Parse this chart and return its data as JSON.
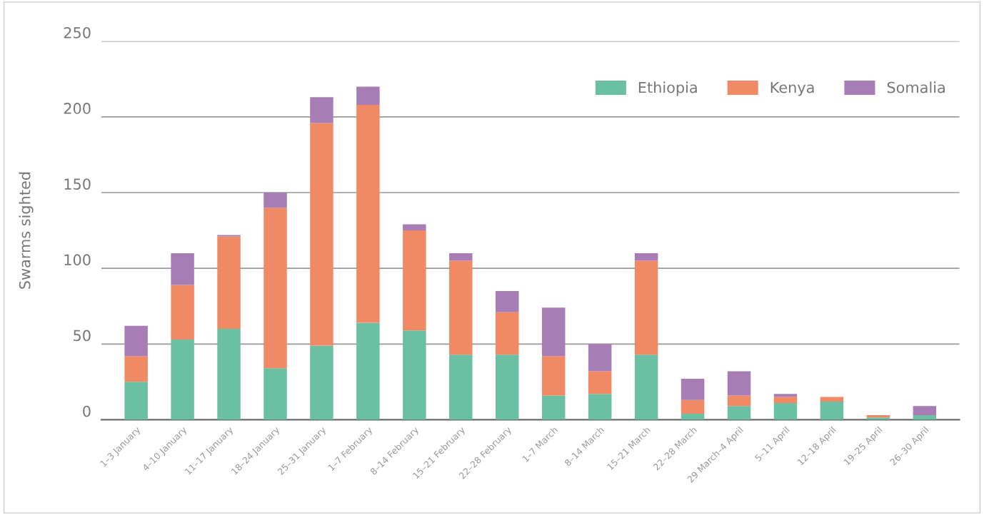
{
  "chart_data": {
    "type": "bar",
    "stacked": true,
    "ylabel": "Swarms sighted",
    "categories": [
      "1–3 January",
      "4–10 January",
      "11–17 January",
      "18–24 January",
      "25–31 January",
      "1–7 February",
      "8–14 February",
      "15–21 February",
      "22–28 February",
      "1–7 March",
      "8–14 March",
      "15–21 March",
      "22–28 March",
      "29 March–4 April",
      "5–11 April",
      "12–18 April",
      "19–25 April",
      "26–30 April"
    ],
    "series": [
      {
        "name": "Ethiopia",
        "color": "#6bbfa3",
        "values": [
          25,
          53,
          60,
          34,
          49,
          64,
          59,
          43,
          43,
          16,
          17,
          43,
          4,
          9,
          11,
          12,
          1.5,
          3
        ]
      },
      {
        "name": "Kenya",
        "color": "#f08a65",
        "values": [
          17,
          36,
          61,
          106,
          147,
          144,
          66,
          62,
          28,
          26,
          15,
          62,
          9,
          7,
          4,
          3,
          1.5,
          0
        ]
      },
      {
        "name": "Somalia",
        "color": "#a87cb4",
        "values": [
          20,
          21,
          1,
          10,
          17,
          12,
          4,
          5,
          14,
          32,
          18,
          5,
          14,
          16,
          2,
          0,
          0,
          6
        ]
      }
    ],
    "ylim": [
      0,
      250
    ],
    "yticks": [
      0,
      50,
      100,
      150,
      200,
      250
    ],
    "grid": "y",
    "legend": "top right"
  }
}
